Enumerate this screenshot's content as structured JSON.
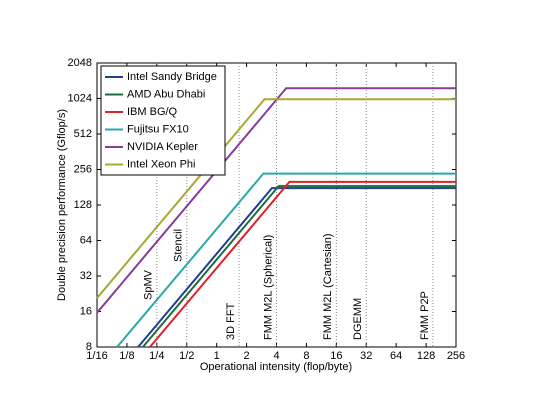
{
  "chart_data": {
    "type": "line",
    "xlabel": "Operational intensity (flop/byte)",
    "ylabel": "Double precision performance (Gflop/s)",
    "xscale": "log",
    "yscale": "log",
    "grid": false,
    "legend": "upper left",
    "xlim": [
      0.0625,
      256
    ],
    "ylim": [
      8,
      2048
    ],
    "xticks": [
      {
        "value": 0.0625,
        "label": "1/16"
      },
      {
        "value": 0.125,
        "label": "1/8"
      },
      {
        "value": 0.25,
        "label": "1/4"
      },
      {
        "value": 0.5,
        "label": "1/2"
      },
      1,
      2,
      4,
      8,
      16,
      32,
      64,
      128,
      256
    ],
    "yticks": [
      8,
      16,
      32,
      64,
      128,
      256,
      512,
      1024,
      2048
    ],
    "series": [
      {
        "name": "Intel Sandy Bridge",
        "color": "#1f3f8f",
        "x": [
          0.162,
          3.6,
          256
        ],
        "values": [
          8,
          178,
          178
        ]
      },
      {
        "name": "AMD Abu Dhabi",
        "color": "#1e6b3c",
        "x": [
          0.181,
          4.2,
          256
        ],
        "values": [
          8,
          185,
          185
        ]
      },
      {
        "name": "IBM BG/Q",
        "color": "#e0202a",
        "x": [
          0.213,
          5.4,
          256
        ],
        "values": [
          8,
          201,
          201
        ]
      },
      {
        "name": "Fujitsu FX10",
        "color": "#2aa8a8",
        "x": [
          0.0995,
          2.95,
          256
        ],
        "values": [
          8,
          236,
          236
        ]
      },
      {
        "name": "NVIDIA Kepler",
        "color": "#8a3a9a",
        "x": [
          0.0625,
          5.0,
          256
        ],
        "values": [
          15.6,
          1250,
          1250
        ]
      },
      {
        "name": "Intel Xeon Phi",
        "color": "#a8a832",
        "x": [
          0.0625,
          3.03,
          256
        ],
        "values": [
          20.8,
          1010,
          1010
        ]
      }
    ],
    "annotations": [
      {
        "label": "SpMV",
        "x": 0.25
      },
      {
        "label": "Stencil",
        "x": 0.5
      },
      {
        "label": "3D FFT",
        "x": 1.68
      },
      {
        "label": "FMM M2L (Spherical)",
        "x": 4
      },
      {
        "label": "FMM M2L (Cartesian)",
        "x": 16
      },
      {
        "label": "DGEMM",
        "x": 32
      },
      {
        "label": "FMM P2P",
        "x": 150
      }
    ]
  }
}
